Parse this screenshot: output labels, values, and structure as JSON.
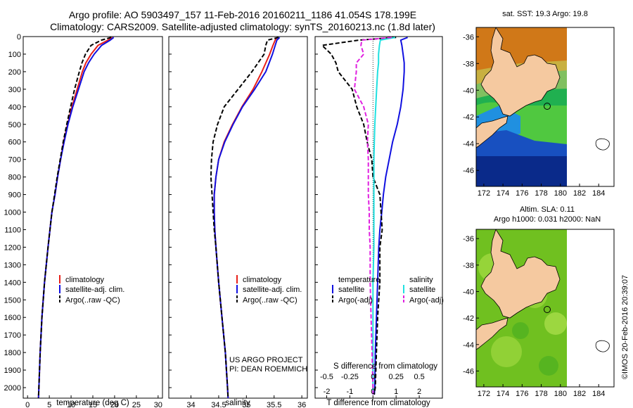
{
  "header": {
    "line1": "Argo profile: AO 5903497_157 11-Feb-2016 20160211_1186 41.054S 178.199E",
    "line2": "Climatology: CARS2009. Satellite-adjusted climatology: synTS_20160213.nc (1.8d later)"
  },
  "colors": {
    "climatology": "#e8201a",
    "satellite": "#1010e0",
    "argo": "#000000",
    "sat_diff_S": "#20e0e0",
    "argo_diff_S": "#e020e0",
    "land": "#f5c9a0"
  },
  "chart_data": [
    {
      "type": "line",
      "panel": "temperature",
      "xlabel": "temperature (deg C)",
      "ylabel": "",
      "xlim": [
        -1,
        31
      ],
      "ylim": [
        2060,
        0
      ],
      "xticks": [
        "0",
        "5",
        "10",
        "15",
        "20",
        "25",
        "30"
      ],
      "yticks": [
        "0",
        "100",
        "200",
        "300",
        "400",
        "500",
        "600",
        "700",
        "800",
        "900",
        "1000",
        "1100",
        "1200",
        "1300",
        "1400",
        "1500",
        "1600",
        "1700",
        "1800",
        "1900",
        "2000"
      ],
      "depth": [
        5,
        20,
        50,
        100,
        150,
        200,
        300,
        400,
        500,
        600,
        700,
        800,
        900,
        1000,
        1200,
        1400,
        1600,
        1800,
        2000,
        2060
      ],
      "series": [
        {
          "name": "climatology",
          "values": [
            19.5,
            18.5,
            16.2,
            14.6,
            13.4,
            12.6,
            11.4,
            10.2,
            9.2,
            8.3,
            7.6,
            6.9,
            6.3,
            5.6,
            4.7,
            3.9,
            3.3,
            2.9,
            2.6,
            2.5
          ]
        },
        {
          "name": "satellite-adj. clim.",
          "values": [
            19.8,
            19.0,
            17.0,
            15.3,
            14.0,
            13.0,
            11.7,
            10.4,
            9.3,
            8.4,
            7.6,
            6.9,
            6.3,
            5.6,
            4.7,
            3.9,
            3.3,
            2.9,
            2.6,
            2.5
          ]
        },
        {
          "name": "Argo(..raw -QC)",
          "values": [
            19.2,
            17.0,
            14.6,
            13.3,
            12.5,
            11.9,
            10.8,
            9.9,
            9.0,
            8.2,
            7.5,
            6.8,
            6.2,
            5.6,
            4.7,
            3.9,
            3.3,
            2.9,
            2.6,
            2.5
          ]
        }
      ],
      "legend": [
        "climatology",
        "satellite-adj. clim.",
        "Argo(..raw -QC)"
      ]
    },
    {
      "type": "line",
      "panel": "salinity",
      "xlabel": "salinity",
      "xlim": [
        33.6,
        36.1
      ],
      "ylim": [
        2060,
        0
      ],
      "xticks": [
        "34",
        "34.5",
        "35",
        "35.5",
        "36"
      ],
      "depth": [
        5,
        20,
        50,
        100,
        200,
        300,
        400,
        500,
        600,
        700,
        800,
        900,
        1000,
        1100,
        1200,
        1400,
        1600,
        1800,
        2000,
        2060
      ],
      "series": [
        {
          "name": "climatology",
          "values": [
            35.55,
            35.52,
            35.48,
            35.42,
            35.28,
            35.12,
            34.92,
            34.75,
            34.6,
            34.5,
            34.45,
            34.42,
            34.42,
            34.43,
            34.45,
            34.5,
            34.56,
            34.62,
            34.66,
            34.67
          ]
        },
        {
          "name": "satellite-adj. clim.",
          "values": [
            35.6,
            35.55,
            35.52,
            35.47,
            35.35,
            35.15,
            34.93,
            34.76,
            34.61,
            34.5,
            34.45,
            34.42,
            34.42,
            34.43,
            34.45,
            34.5,
            34.56,
            34.62,
            34.66,
            34.67
          ]
        },
        {
          "name": "Argo(..raw -QC)",
          "values": [
            35.58,
            35.38,
            35.35,
            35.32,
            35.1,
            34.85,
            34.6,
            34.48,
            34.4,
            34.37,
            34.36,
            34.38,
            34.4,
            34.42,
            34.45,
            34.5,
            34.56,
            34.62,
            34.66,
            34.67
          ]
        }
      ],
      "legend": [
        "climatology",
        "satellite-adj. clim.",
        "Argo(..raw -QC)"
      ],
      "annotation": [
        "US ARGO PROJECT",
        "PI: DEAN ROEMMICH"
      ]
    },
    {
      "type": "line",
      "panel": "difference",
      "xlabel": "T difference from climatology",
      "x2label": "S difference from climatology",
      "xlim": [
        -2.5,
        3.0
      ],
      "ylim": [
        2060,
        0
      ],
      "xticks": [
        "-2",
        "-1",
        "0",
        "1",
        "2"
      ],
      "x2ticks": [
        "-0.5",
        "-0.25",
        "0",
        "0.25",
        "0.5"
      ],
      "depth": [
        5,
        20,
        50,
        100,
        150,
        200,
        300,
        400,
        500,
        600,
        700,
        800,
        900,
        1000,
        1100,
        1200,
        1400,
        1600,
        1800,
        2000,
        2040
      ],
      "series": [
        {
          "name": "temperature satellite",
          "values": [
            1.5,
            1.2,
            1.25,
            1.3,
            1.35,
            1.35,
            1.3,
            1.2,
            1.05,
            0.85,
            0.7,
            0.55,
            0.45,
            0.38,
            0.3,
            0.25,
            0.2,
            0.15,
            0.1,
            0.08,
            0.06
          ]
        },
        {
          "name": "temperature Argo(-adj)",
          "values": [
            1.0,
            -0.6,
            -2.2,
            -1.8,
            -1.6,
            -1.5,
            -0.9,
            -0.7,
            -0.4,
            -0.25,
            -0.05,
            0.0,
            0.3,
            0.35,
            0.4,
            0.3,
            0.3,
            0.2,
            0.15,
            0.1,
            0.05
          ]
        },
        {
          "name": "salinity satellite",
          "values": [
            0.24,
            0.08,
            0.07,
            0.06,
            0.06,
            0.05,
            0.04,
            0.03,
            0.02,
            0.015,
            0.01,
            0.01,
            0.01,
            0.01,
            0.01,
            0.01,
            0.0,
            0.0,
            0.0,
            0.0,
            0.0
          ]
        },
        {
          "name": "salinity Argo(-adj)",
          "values": [
            0.2,
            -0.12,
            -0.13,
            -0.1,
            -0.18,
            -0.18,
            -0.2,
            -0.1,
            -0.05,
            -0.06,
            -0.05,
            -0.05,
            -0.05,
            -0.04,
            -0.04,
            -0.03,
            -0.03,
            -0.02,
            -0.01,
            0.0,
            0.0
          ]
        }
      ],
      "legend_temperature_title": "temperature",
      "legend_salinity_title": "salinity",
      "legend_entries": [
        "satellite",
        "Argo(-adj)"
      ]
    }
  ],
  "maps": {
    "sst": {
      "title": "sat. SST: 19.3 Argo: 19.8",
      "xticks": [
        "172",
        "174",
        "176",
        "178",
        "180",
        "182",
        "184"
      ],
      "yticks": [
        "-36",
        "-38",
        "-40",
        "-42",
        "-44",
        "-46"
      ]
    },
    "sla": {
      "title_line1": "Altim. SLA: 0.11",
      "title_line2": "Argo h1000: 0.031 h2000: NaN",
      "xticks": [
        "172",
        "174",
        "176",
        "178",
        "180",
        "182",
        "184"
      ],
      "yticks": [
        "-36",
        "-38",
        "-40",
        "-42",
        "-44",
        "-46"
      ]
    },
    "float_position": {
      "lon": 178.199,
      "lat": -41.054
    }
  },
  "credit": "©IMOS 20-Feb-2016 20:39:07"
}
